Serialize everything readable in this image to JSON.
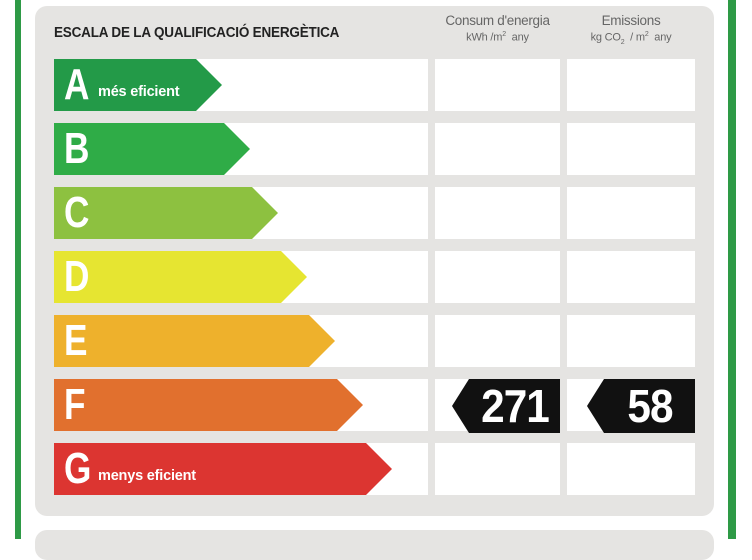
{
  "header": {
    "title": "ESCALA DE LA QUALIFICACIÓ ENERGÈTICA",
    "energy_col": {
      "line1": "Consum d'energia",
      "line2_pre": "kWh /m",
      "line2_sup": "2",
      "line2_post": "  any"
    },
    "emissions_col": {
      "line1": "Emissions",
      "line2_pre": "kg CO",
      "line2_sub": "2",
      "line2_mid": "  / m",
      "line2_sup": "2",
      "line2_post": "  any"
    }
  },
  "ratings": [
    {
      "letter": "A",
      "desc": "més eficient",
      "color": "#239a48"
    },
    {
      "letter": "B",
      "desc": "",
      "color": "#2fac47"
    },
    {
      "letter": "C",
      "desc": "",
      "color": "#8dc140"
    },
    {
      "letter": "D",
      "desc": "",
      "color": "#e6e531"
    },
    {
      "letter": "E",
      "desc": "",
      "color": "#eeb12c"
    },
    {
      "letter": "F",
      "desc": "",
      "color": "#e1702e"
    },
    {
      "letter": "G",
      "desc": "menys eficient",
      "color": "#dc3531"
    }
  ],
  "result": {
    "rating": "F",
    "energy_value": "271",
    "emissions_value": "58"
  }
}
